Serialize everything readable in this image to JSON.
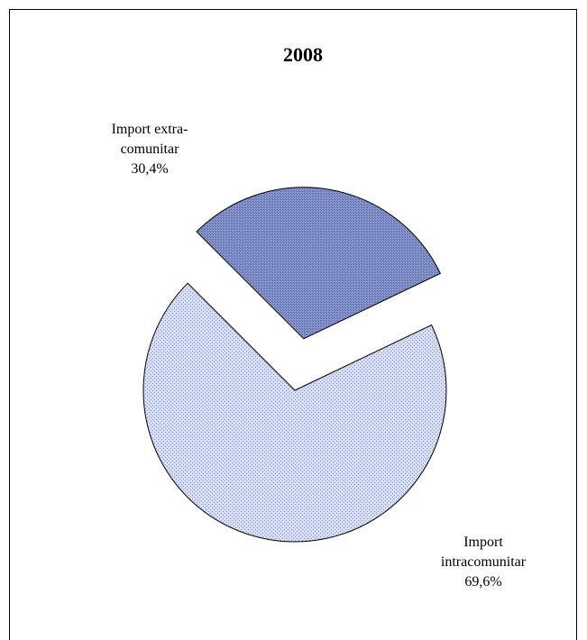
{
  "chart_data": {
    "type": "pie",
    "title": "2008",
    "exploded": true,
    "slices": [
      {
        "label_lines": [
          "Import extra-",
          "comunitar"
        ],
        "value_label": "30,4%",
        "value": 30.4,
        "color": "#8796cc",
        "pattern": "dense-grid"
      },
      {
        "label_lines": [
          "Import",
          "intracomunitar"
        ],
        "value_label": "69,6%",
        "value": 69.6,
        "color": "#c9d3ec",
        "pattern": "dots"
      }
    ]
  }
}
